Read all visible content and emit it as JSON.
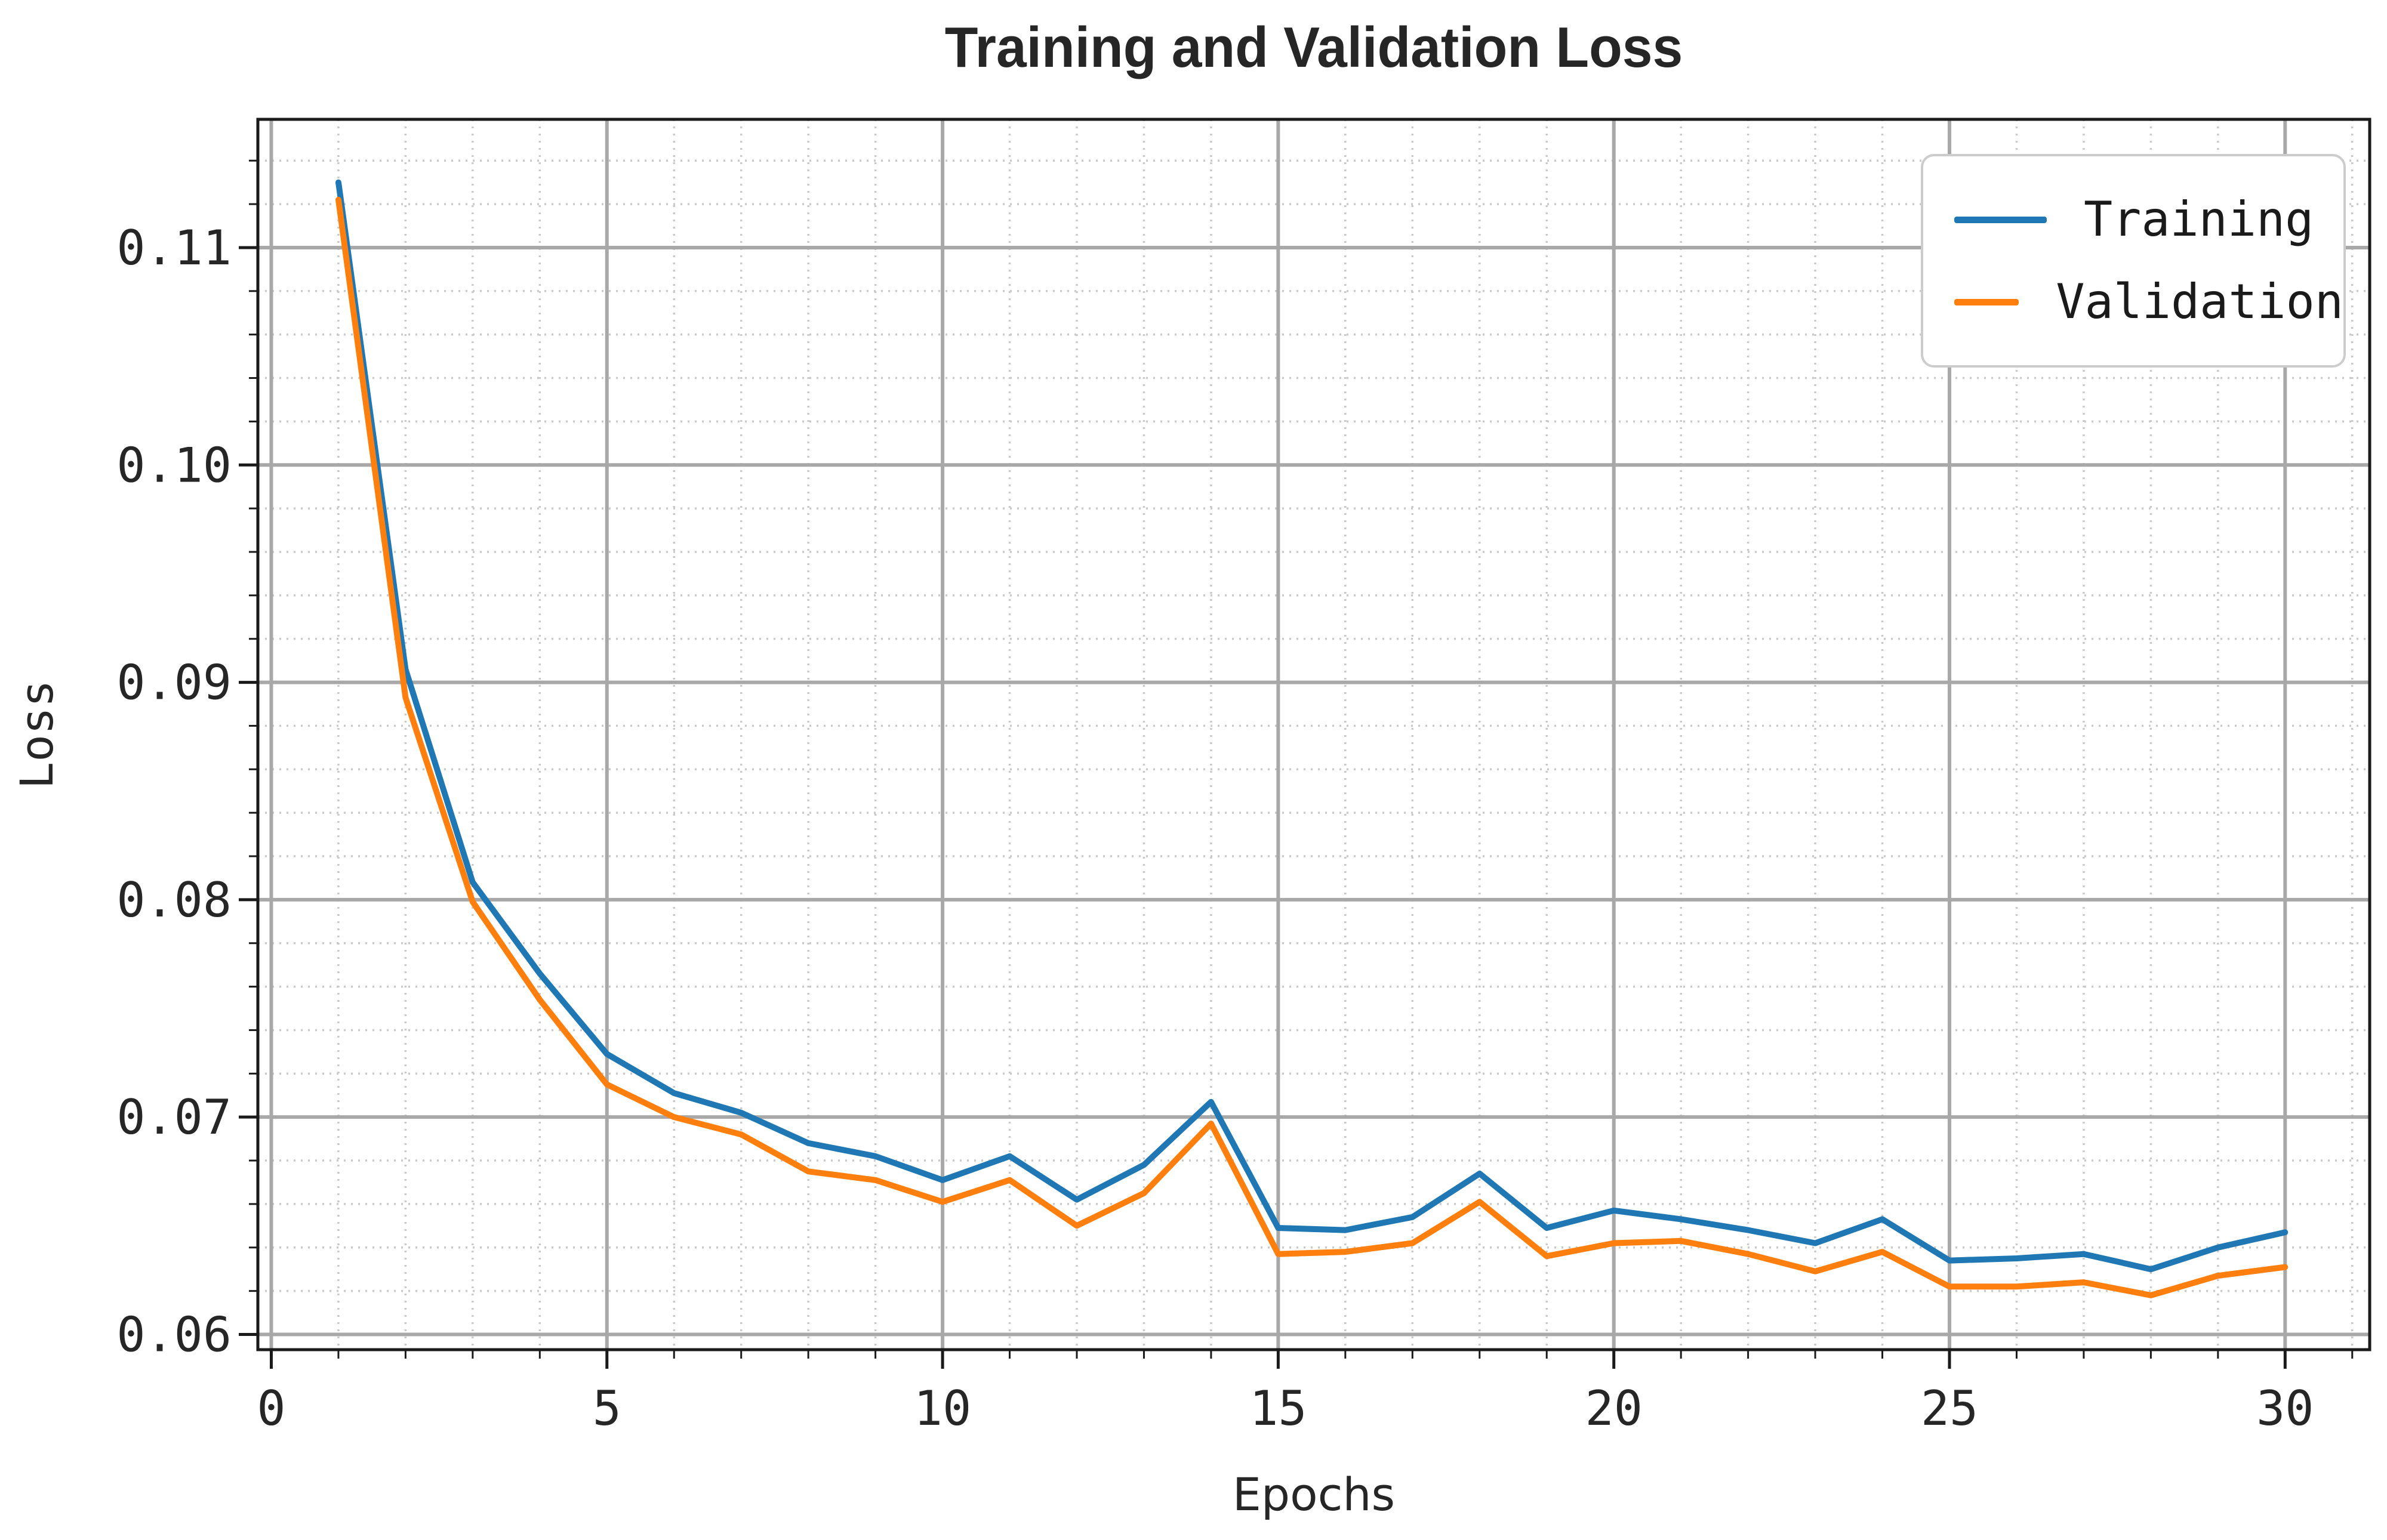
{
  "chart_data": {
    "type": "line",
    "title": "Training and Validation Loss",
    "xlabel": "Epochs",
    "ylabel": "Loss",
    "x": [
      1,
      2,
      3,
      4,
      5,
      6,
      7,
      8,
      9,
      10,
      11,
      12,
      13,
      14,
      15,
      16,
      17,
      18,
      19,
      20,
      21,
      22,
      23,
      24,
      25,
      26,
      27,
      28,
      29,
      30
    ],
    "series": [
      {
        "name": "Training",
        "color": "#1f77b4",
        "values": [
          0.113,
          0.0906,
          0.0808,
          0.0766,
          0.0729,
          0.0711,
          0.0702,
          0.0688,
          0.0682,
          0.0671,
          0.0682,
          0.0662,
          0.0678,
          0.0707,
          0.0649,
          0.0648,
          0.0654,
          0.0674,
          0.0649,
          0.0657,
          0.0653,
          0.0648,
          0.0642,
          0.0653,
          0.0634,
          0.0635,
          0.0637,
          0.063,
          0.064,
          0.0647
        ]
      },
      {
        "name": "Validation",
        "color": "#ff7f0e",
        "values": [
          0.1122,
          0.0893,
          0.0799,
          0.0754,
          0.0715,
          0.07,
          0.0692,
          0.0675,
          0.0671,
          0.0661,
          0.0671,
          0.065,
          0.0665,
          0.0697,
          0.0637,
          0.0638,
          0.0642,
          0.0661,
          0.0636,
          0.0642,
          0.0643,
          0.0637,
          0.0629,
          0.0638,
          0.0622,
          0.0622,
          0.0624,
          0.0618,
          0.0627,
          0.0631
        ]
      }
    ],
    "xlim": [
      -0.2,
      31.26
    ],
    "ylim": [
      0.0593,
      0.1159
    ],
    "x_major_ticks": [
      0,
      5,
      10,
      15,
      20,
      25,
      30
    ],
    "x_tick_labels": [
      "0",
      "5",
      "10",
      "15",
      "20",
      "25",
      "30"
    ],
    "x_minor_step": 1,
    "y_major_ticks": [
      0.06,
      0.07,
      0.08,
      0.09,
      0.1,
      0.11
    ],
    "y_tick_labels": [
      "0.06",
      "0.07",
      "0.08",
      "0.09",
      "0.10",
      "0.11"
    ],
    "y_minor_step": 0.002,
    "grid": {
      "major": "solid",
      "minor": "dotted"
    },
    "legend_position": "upper right",
    "colors": {
      "background": "#ffffff",
      "spine": "#1a1a1a",
      "major_grid": "#a8a8a8",
      "minor_grid": "#c9c9c9",
      "text": "#262626"
    }
  }
}
